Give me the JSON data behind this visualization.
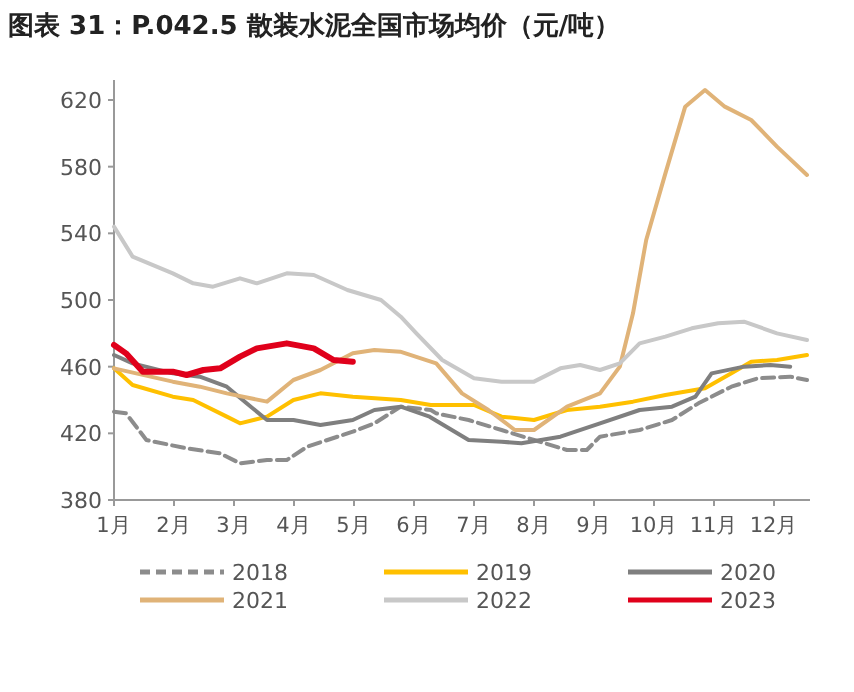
{
  "chart_data": {
    "type": "line",
    "title": "图表 31：P.042.5 散装水泥全国市场均价（元/吨）",
    "xlim": [
      1,
      12.6
    ],
    "xticks": [
      {
        "value": 1,
        "label": "1月"
      },
      {
        "value": 2,
        "label": "2月"
      },
      {
        "value": 3,
        "label": "3月"
      },
      {
        "value": 4,
        "label": "4月"
      },
      {
        "value": 5,
        "label": "5月"
      },
      {
        "value": 6,
        "label": "6月"
      },
      {
        "value": 7,
        "label": "7月"
      },
      {
        "value": 8,
        "label": "8月"
      },
      {
        "value": 9,
        "label": "9月"
      },
      {
        "value": 10,
        "label": "10月"
      },
      {
        "value": 11,
        "label": "11月"
      },
      {
        "value": 12,
        "label": "12月"
      }
    ],
    "ylim": [
      380,
      632
    ],
    "yticks": [
      380,
      420,
      460,
      500,
      540,
      580,
      620
    ],
    "grid": false,
    "legend": "bottom",
    "marker": "none",
    "series": [
      {
        "name": "2018",
        "color": "#8c8c8c",
        "line_style": "dashed",
        "x": [
          1,
          1.2,
          1.54,
          2.21,
          2.77,
          3.1,
          3.55,
          3.88,
          4.22,
          4.98,
          5.34,
          5.78,
          6.28,
          6.37,
          6.91,
          7.46,
          8,
          8.55,
          8.88,
          9.1,
          9.76,
          10.3,
          10.74,
          11.29,
          11.73,
          12.27,
          12.55
        ],
        "values": [
          433,
          432,
          416,
          411,
          408,
          402,
          404,
          404,
          412,
          421,
          426,
          436,
          434,
          432,
          428,
          422,
          416,
          410,
          410,
          418,
          422,
          428,
          438,
          448,
          453,
          454,
          452
        ]
      },
      {
        "name": "2019",
        "color": "#ffc000",
        "x": [
          1,
          1.31,
          1.98,
          2.32,
          2.88,
          3.1,
          3.55,
          3.99,
          4.44,
          4.98,
          5.78,
          6.28,
          7,
          7.46,
          8,
          8.55,
          9.1,
          9.65,
          10.19,
          10.85,
          11.29,
          11.62,
          12.05,
          12.55
        ],
        "values": [
          459,
          449,
          442,
          440,
          430,
          426,
          430,
          440,
          444,
          442,
          440,
          437,
          437,
          430,
          428,
          434,
          436,
          439,
          443,
          447,
          456,
          463,
          464,
          467
        ]
      },
      {
        "name": "2020",
        "color": "#7f7f7f",
        "x": [
          1,
          1.31,
          1.98,
          2.43,
          2.88,
          3.21,
          3.55,
          3.99,
          4.44,
          4.98,
          5.34,
          5.78,
          6.26,
          6.91,
          7.46,
          7.79,
          8.44,
          9.1,
          9.76,
          10.3,
          10.69,
          10.96,
          11.5,
          11.94,
          12.27
        ],
        "values": [
          467,
          462,
          456,
          454,
          448,
          438,
          428,
          428,
          425,
          428,
          434,
          436,
          430,
          416,
          415,
          414,
          418,
          426,
          434,
          436,
          442,
          456,
          460,
          461,
          460
        ]
      },
      {
        "name": "2021",
        "color": "#e0b378",
        "x": [
          1,
          1.98,
          2.43,
          2.88,
          3.55,
          3.99,
          4.44,
          4.98,
          5.34,
          5.77,
          6.37,
          6.8,
          7.24,
          7.68,
          8,
          8.55,
          9.1,
          9.43,
          9.65,
          9.87,
          10.19,
          10.52,
          10.85,
          11.18,
          11.62,
          12.05,
          12.55
        ],
        "values": [
          459,
          451,
          448,
          444,
          439,
          452,
          458,
          468,
          470,
          469,
          462,
          444,
          434,
          422,
          422,
          436,
          444,
          460,
          492,
          536,
          576,
          616,
          626,
          616,
          608,
          592,
          575
        ]
      },
      {
        "name": "2022",
        "color": "#c8c8c8",
        "x": [
          1,
          1.31,
          1.98,
          2.32,
          2.65,
          3.1,
          3.38,
          3.88,
          4.33,
          4.89,
          5.45,
          5.78,
          6.04,
          6.47,
          7,
          7.46,
          8,
          8.44,
          8.77,
          9.1,
          9.43,
          9.76,
          10.19,
          10.63,
          11.07,
          11.5,
          12.05,
          12.55
        ],
        "values": [
          544,
          526,
          516,
          510,
          508,
          513,
          510,
          516,
          515,
          506,
          500,
          490,
          480,
          464,
          453,
          451,
          451,
          459,
          461,
          458,
          462,
          474,
          478,
          483,
          486,
          487,
          480,
          476
        ]
      },
      {
        "name": "2023",
        "color": "#e0001b",
        "x": [
          1,
          1.2,
          1.48,
          1.98,
          2.21,
          2.49,
          2.77,
          3.1,
          3.38,
          3.88,
          4.33,
          4.66,
          4.98
        ],
        "values": [
          473,
          468,
          457,
          457,
          455,
          458,
          459,
          466,
          471,
          474,
          471,
          464,
          463
        ]
      }
    ]
  }
}
